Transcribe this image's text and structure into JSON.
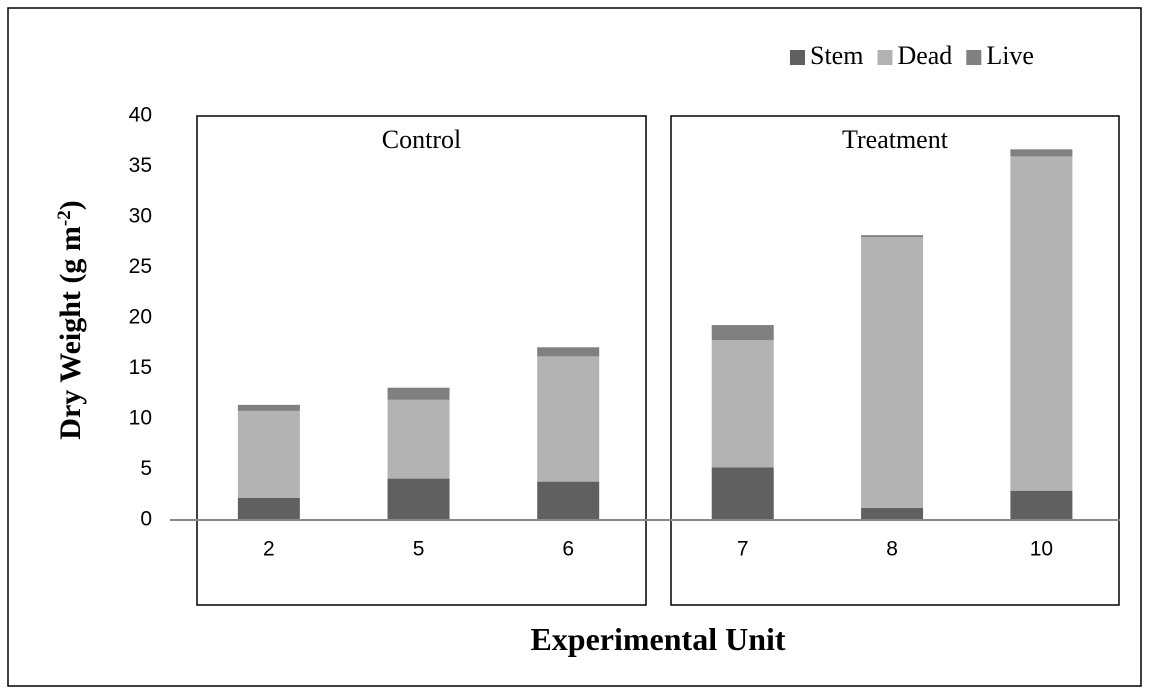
{
  "chart_data": {
    "type": "stacked-bar",
    "y_label": {
      "text": "Dry Weight (g m",
      "superscript": "-2",
      "suffix": ")"
    },
    "x_label": "Experimental Unit",
    "groups": [
      {
        "label": "Control",
        "categories": [
          "2",
          "5",
          "6"
        ]
      },
      {
        "label": "Treatment",
        "categories": [
          "7",
          "8",
          "10"
        ]
      }
    ],
    "series": [
      {
        "name": "Stem",
        "color": "#606060",
        "values": [
          2.2,
          4.1,
          3.8,
          5.2,
          1.2,
          2.9
        ]
      },
      {
        "name": "Dead",
        "color": "#b3b3b3",
        "values": [
          8.6,
          7.8,
          12.4,
          12.6,
          26.8,
          33.1
        ]
      },
      {
        "name": "Live",
        "color": "#808080",
        "values": [
          0.6,
          1.2,
          0.9,
          1.5,
          0.2,
          0.7
        ]
      }
    ],
    "ylim": [
      0,
      40
    ],
    "yticks": [
      0,
      5,
      10,
      15,
      20,
      25,
      30,
      35,
      40
    ],
    "grid": false,
    "legend": "top-right"
  }
}
